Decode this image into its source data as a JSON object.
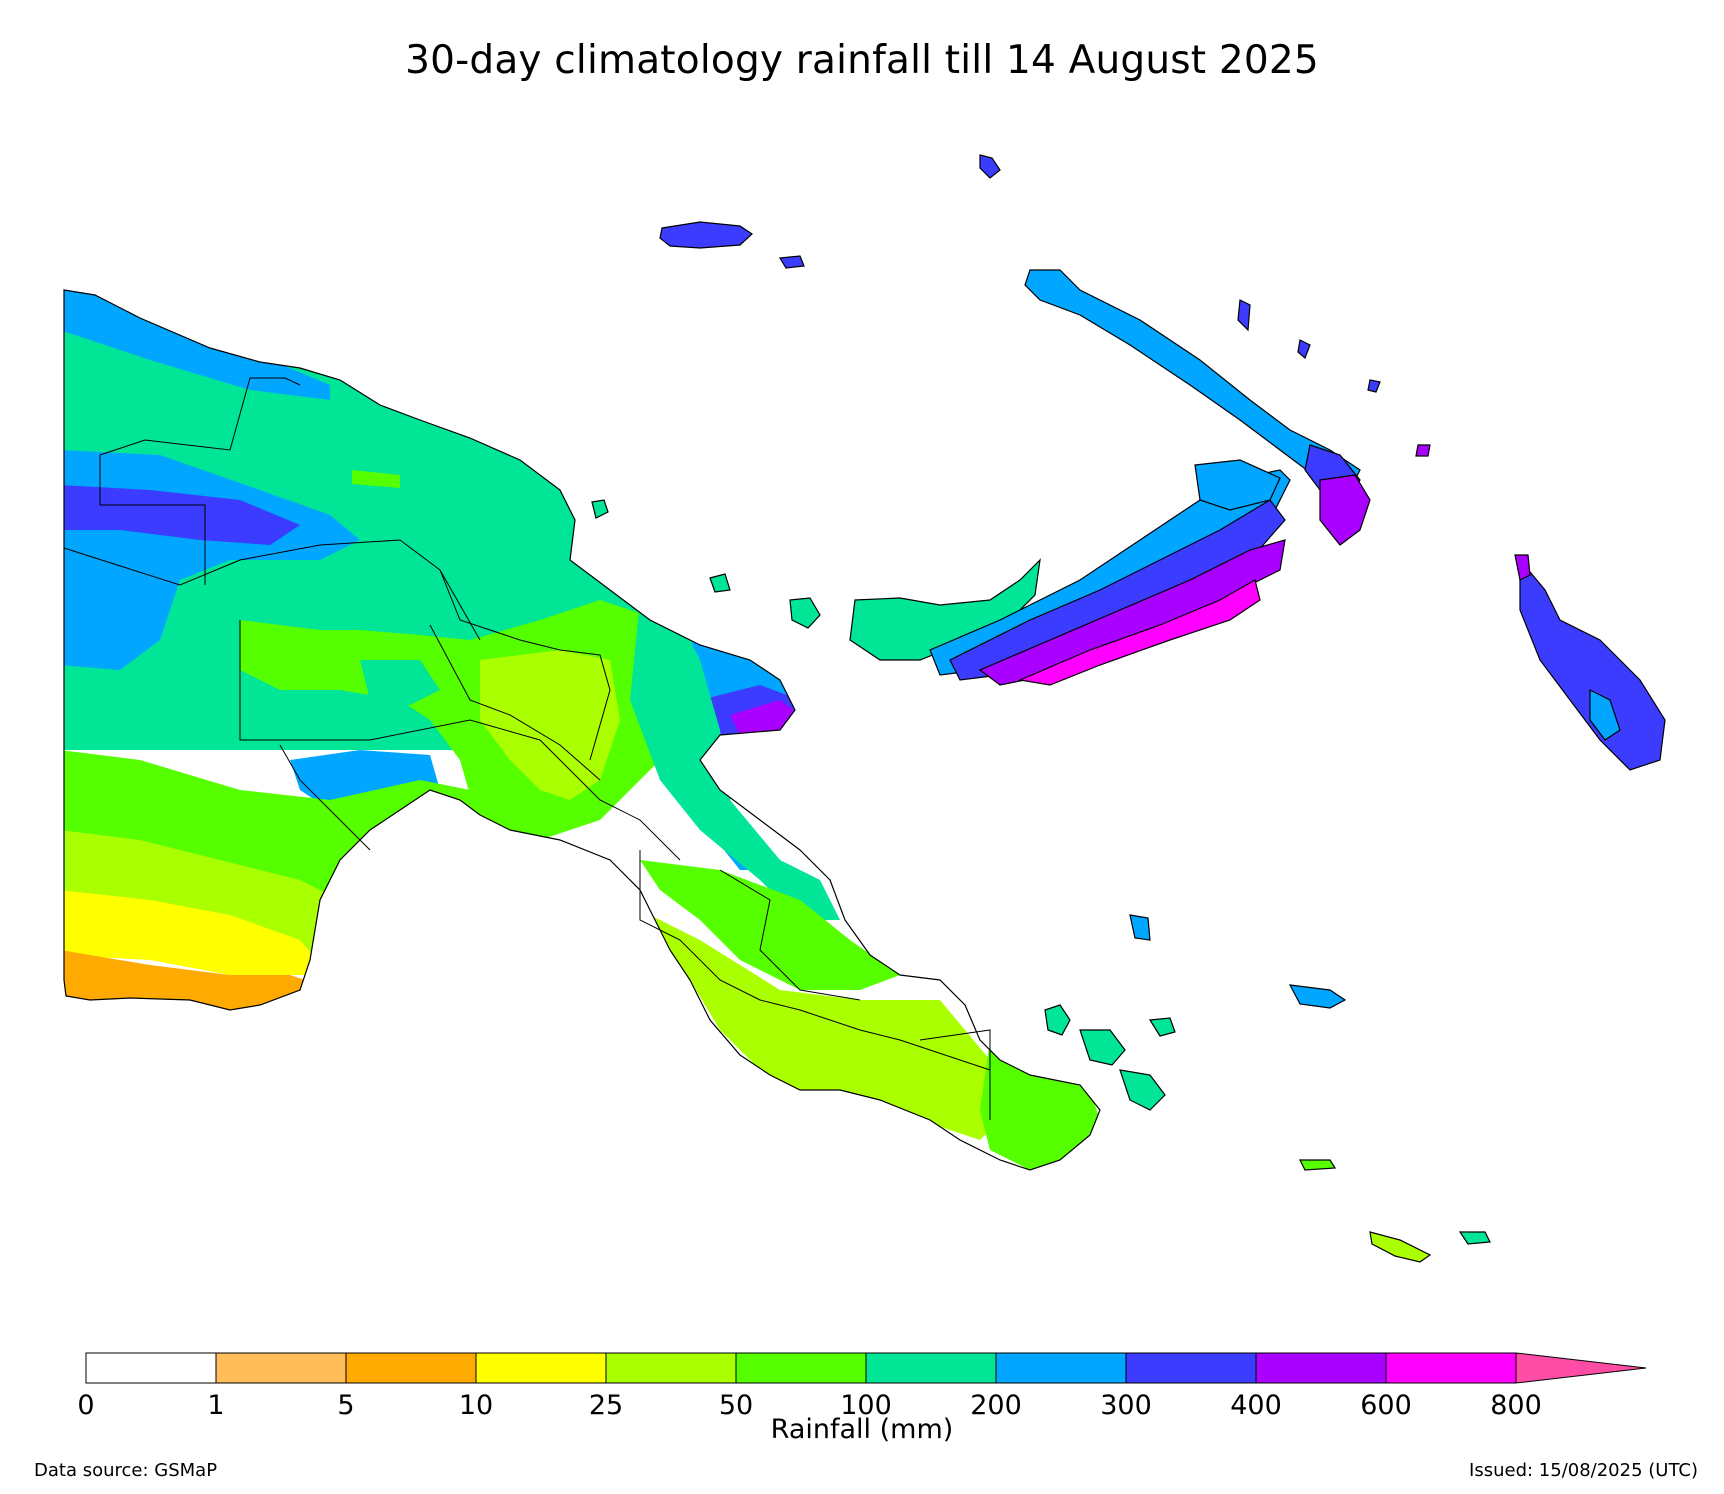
{
  "title": "30-day climatology rainfall till 14 August 2025",
  "colorbar": {
    "label": "Rainfall (mm)",
    "ticks": [
      "0",
      "1",
      "5",
      "10",
      "25",
      "50",
      "100",
      "200",
      "300",
      "400",
      "600",
      "800"
    ],
    "colors": [
      "#ffffff",
      "#ffbe5a",
      "#ffaa00",
      "#ffff00",
      "#aaff00",
      "#55ff00",
      "#00e696",
      "#00a6ff",
      "#3c3cff",
      "#aa00ff",
      "#ff00ff"
    ],
    "extend_color": "#ff4da6"
  },
  "footer": {
    "source": "Data source: GSMaP",
    "issued": "Issued: 15/08/2025 (UTC)"
  },
  "map_regions": [
    {
      "name": "west-north-coast",
      "color": "#00a6ff"
    },
    {
      "name": "sepik-upper",
      "color": "#00e696"
    },
    {
      "name": "west-blue-band",
      "color": "#00a6ff"
    },
    {
      "name": "west-indigo-core",
      "color": "#3c3cff"
    },
    {
      "name": "western-teal-mid",
      "color": "#00e696"
    },
    {
      "name": "western-green",
      "color": "#55ff00"
    },
    {
      "name": "western-lime",
      "color": "#aaff00"
    },
    {
      "name": "south-yellow",
      "color": "#ffff00"
    },
    {
      "name": "south-orange",
      "color": "#ffaa00"
    },
    {
      "name": "fly-delta-blue",
      "color": "#00a6ff"
    },
    {
      "name": "highlands-green",
      "color": "#55ff00"
    },
    {
      "name": "highlands-lime",
      "color": "#aaff00"
    },
    {
      "name": "madang-teal",
      "color": "#00e696"
    },
    {
      "name": "madang-blue",
      "color": "#00a6ff"
    },
    {
      "name": "madang-indigo",
      "color": "#3c3cff"
    },
    {
      "name": "madang-violet",
      "color": "#aa00ff"
    },
    {
      "name": "morobe-teal",
      "color": "#00e696"
    },
    {
      "name": "morobe-green",
      "color": "#55ff00"
    },
    {
      "name": "papua-lime",
      "color": "#aaff00"
    },
    {
      "name": "milne-bay-green",
      "color": "#55ff00"
    },
    {
      "name": "new-britain-teal",
      "color": "#00e696"
    },
    {
      "name": "new-britain-blue",
      "color": "#00a6ff"
    },
    {
      "name": "new-britain-indigo",
      "color": "#3c3cff"
    },
    {
      "name": "new-britain-violet",
      "color": "#aa00ff"
    },
    {
      "name": "new-britain-magenta",
      "color": "#ff00ff"
    },
    {
      "name": "new-ireland-blue",
      "color": "#00a6ff"
    },
    {
      "name": "new-ireland-indigo",
      "color": "#3c3cff"
    },
    {
      "name": "new-ireland-violet",
      "color": "#aa00ff"
    },
    {
      "name": "bougainville-indigo",
      "color": "#3c3cff"
    },
    {
      "name": "bougainville-blue",
      "color": "#00a6ff"
    },
    {
      "name": "manus-indigo",
      "color": "#3c3cff"
    },
    {
      "name": "islands-teal",
      "color": "#00e696"
    }
  ]
}
